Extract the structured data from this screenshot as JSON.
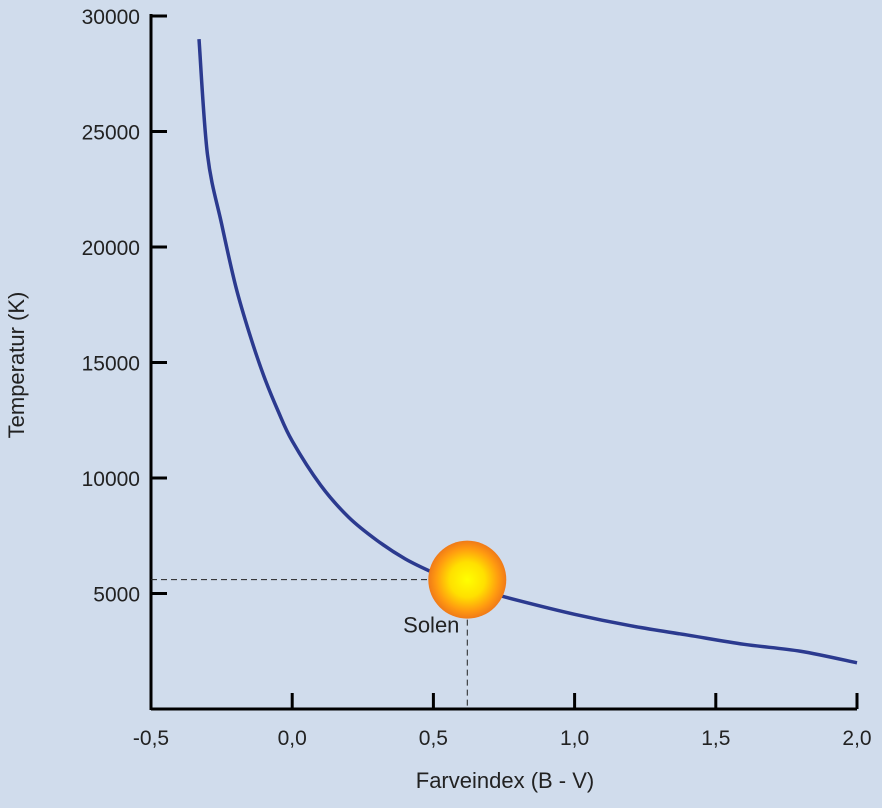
{
  "chart_data": {
    "type": "line",
    "xlabel": "Farveindex (B - V)",
    "ylabel": "Temperatur (K)",
    "xlim": [
      -0.5,
      2.0
    ],
    "ylim": [
      0,
      30000
    ],
    "x_ticks": [
      -0.5,
      0.0,
      0.5,
      1.0,
      1.5,
      2.0
    ],
    "x_tick_labels": [
      "-0,5",
      "0,0",
      "0,5",
      "1,0",
      "1,5",
      "2,0"
    ],
    "y_ticks": [
      5000,
      10000,
      15000,
      20000,
      25000,
      30000
    ],
    "y_tick_labels": [
      "5000",
      "10000",
      "15000",
      "20000",
      "25000",
      "30000"
    ],
    "grid": false,
    "legend": "none",
    "line_color": "#2b3a8f",
    "series": [
      {
        "x": [
          -0.33,
          -0.3,
          -0.25,
          -0.2,
          -0.15,
          -0.1,
          -0.05,
          0.0,
          0.1,
          0.2,
          0.3,
          0.4,
          0.5,
          0.6,
          0.65,
          0.8,
          1.0,
          1.2,
          1.4,
          1.6,
          1.8,
          2.0
        ],
        "values": [
          29000,
          24000,
          21000,
          18300,
          16200,
          14400,
          12900,
          11600,
          9700,
          8300,
          7300,
          6500,
          5900,
          5400,
          5200,
          4700,
          4100,
          3600,
          3200,
          2800,
          2500,
          2000
        ]
      }
    ],
    "annotations": [
      {
        "text": "Solen",
        "x": 0.62,
        "y": 5600,
        "marker": "sun"
      }
    ]
  }
}
